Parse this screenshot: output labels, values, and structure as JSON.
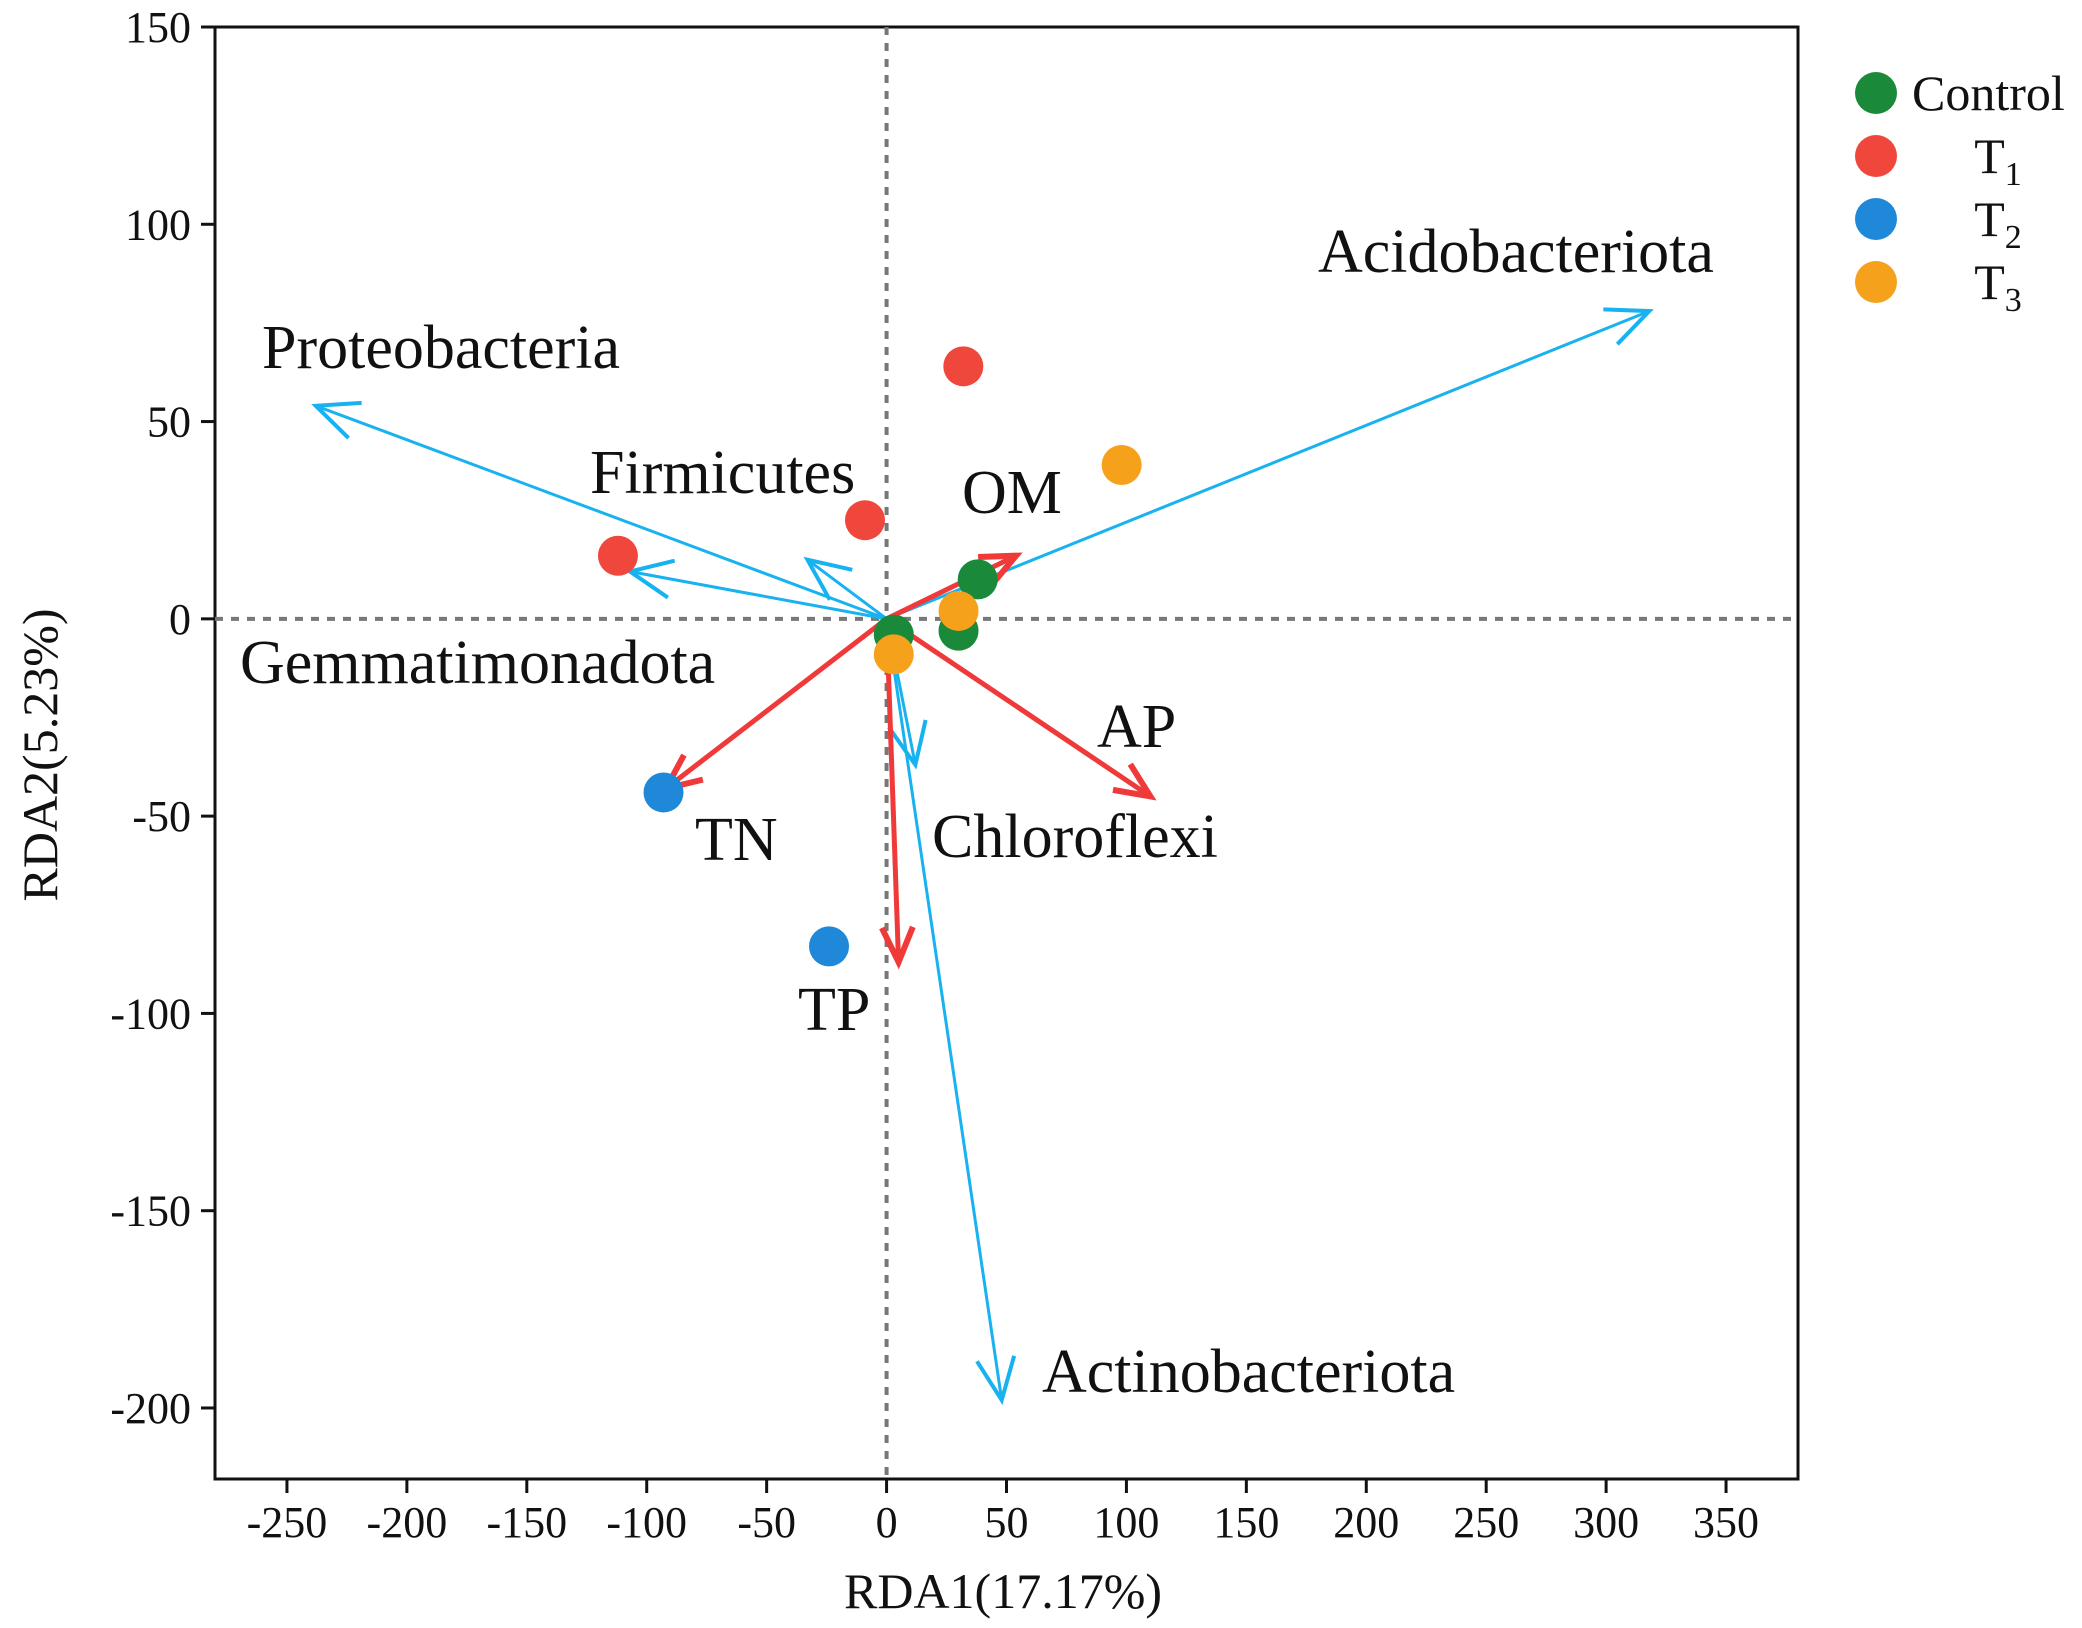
{
  "chart_data": {
    "type": "scatter",
    "subtype": "rda-biplot",
    "xlabel": "RDA1(17.17%)",
    "ylabel": "RDA2(5.23%)",
    "xlim": [
      -280,
      380
    ],
    "ylim": [
      -218,
      150
    ],
    "xticks": [
      -250,
      -200,
      -150,
      -100,
      -50,
      0,
      50,
      100,
      150,
      200,
      250,
      300,
      350
    ],
    "yticks": [
      150,
      100,
      50,
      0,
      -50,
      -100,
      -150,
      -200
    ],
    "grid": false,
    "zero_lines": "dotted",
    "legend": {
      "position": "top-right",
      "entries": [
        {
          "name": "Control",
          "base": "Control",
          "sub": "",
          "color": "#1a8a3a"
        },
        {
          "name": "T1",
          "base": "T",
          "sub": "1",
          "color": "#f0473c"
        },
        {
          "name": "T2",
          "base": "T",
          "sub": "2",
          "color": "#1f88d8"
        },
        {
          "name": "T3",
          "base": "T",
          "sub": "3",
          "color": "#f5a11b"
        }
      ]
    },
    "series": [
      {
        "name": "Control",
        "color": "#1a8a3a",
        "points": [
          [
            38,
            10
          ],
          [
            30,
            -3
          ],
          [
            3,
            -4
          ]
        ]
      },
      {
        "name": "T1",
        "color": "#f0473c",
        "points": [
          [
            32,
            64
          ],
          [
            -9,
            25
          ],
          [
            -112,
            16
          ]
        ]
      },
      {
        "name": "T2",
        "color": "#1f88d8",
        "points": [
          [
            -93,
            -44
          ],
          [
            -24,
            -83
          ]
        ]
      },
      {
        "name": "T3",
        "color": "#f5a11b",
        "points": [
          [
            98,
            39
          ],
          [
            30,
            2
          ],
          [
            3,
            -9
          ]
        ]
      }
    ],
    "species_arrows": {
      "color": "#19b2f0",
      "items": [
        {
          "name": "Acidobacteriota",
          "end": [
            318,
            78
          ]
        },
        {
          "name": "Proteobacteria",
          "end": [
            -238,
            54
          ]
        },
        {
          "name": "Firmicutes",
          "end": [
            -33,
            15
          ]
        },
        {
          "name": "Gemmatimonadota",
          "end": [
            -107,
            12
          ]
        },
        {
          "name": "Chloroflexi",
          "end": [
            12,
            -37
          ]
        },
        {
          "name": "Actinobacteriota",
          "end": [
            48,
            -198
          ]
        }
      ]
    },
    "environment_arrows": {
      "color": "#f03a3a",
      "items": [
        {
          "name": "OM",
          "end": [
            54,
            16
          ]
        },
        {
          "name": "AP",
          "end": [
            110,
            -45
          ]
        },
        {
          "name": "TN",
          "end": [
            -92,
            -43
          ]
        },
        {
          "name": "TP",
          "end": [
            5,
            -87
          ]
        }
      ]
    }
  }
}
